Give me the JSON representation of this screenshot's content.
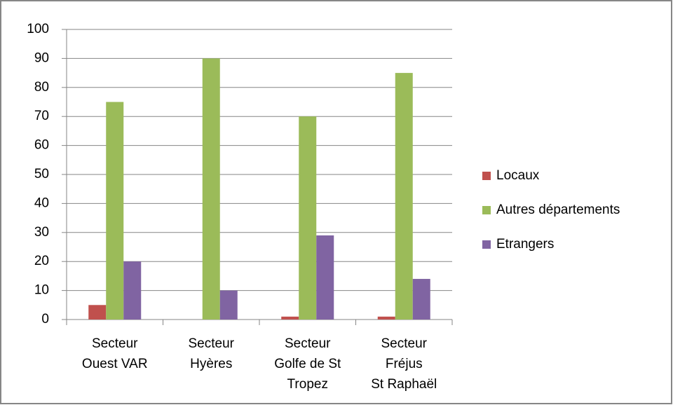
{
  "chart_data": {
    "type": "bar",
    "categories": [
      "Secteur\nOuest VAR",
      "Secteur\nHyères",
      "Secteur\nGolfe de St\nTropez",
      "Secteur\nFréjus\nSt Raphaël"
    ],
    "series": [
      {
        "name": "Locaux",
        "color": "#c0504d",
        "values": [
          5,
          0,
          1,
          1
        ]
      },
      {
        "name": "Autres départements",
        "color": "#9bbb59",
        "values": [
          75,
          90,
          70,
          85
        ]
      },
      {
        "name": "Etrangers",
        "color": "#8064a2",
        "values": [
          20,
          10,
          29,
          14
        ]
      }
    ],
    "ylim": [
      0,
      100
    ],
    "yticks": [
      0,
      10,
      20,
      30,
      40,
      50,
      60,
      70,
      80,
      90,
      100
    ],
    "grid": true,
    "legend": "right"
  }
}
